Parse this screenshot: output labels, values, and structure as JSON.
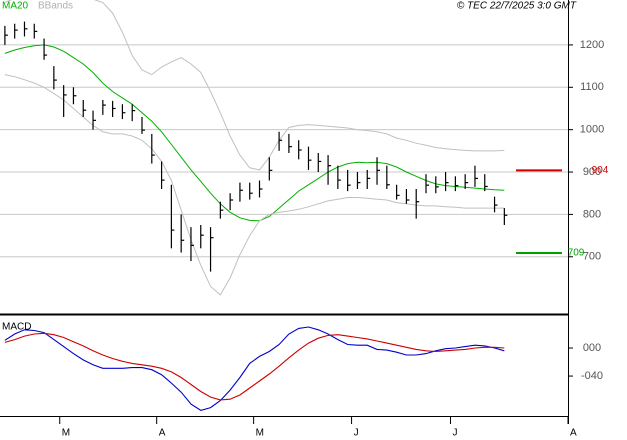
{
  "chart_data": [
    {
      "type": "ohlc",
      "title": "© TEC 22/7/2025 3:0 GMT",
      "bar_color": "#000000",
      "xlim": [
        -0.5,
        57.5
      ],
      "xticks": [
        {
          "value": 5.6,
          "label": "M"
        },
        {
          "value": 15.5,
          "label": "A"
        },
        {
          "value": 25.4,
          "label": "M"
        },
        {
          "value": 35.4,
          "label": "J"
        },
        {
          "value": 45.5,
          "label": "J"
        },
        {
          "value": 57.5,
          "label": "A"
        }
      ],
      "ylim": [
        565,
        1306
      ],
      "yticks": [
        700,
        800,
        900,
        1000,
        1100,
        1200
      ],
      "grid": true,
      "high": [
        1245,
        1250,
        1255,
        1250,
        1215,
        1150,
        1105,
        1100,
        1070,
        1045,
        1070,
        1068,
        1060,
        1060,
        1030,
        990,
        925,
        870,
        800,
        770,
        775,
        770,
        830,
        850,
        875,
        875,
        880,
        935,
        995,
        990,
        975,
        960,
        945,
        940,
        915,
        905,
        900,
        905,
        935,
        915,
        870,
        860,
        860,
        895,
        890,
        900,
        890,
        895,
        915,
        895,
        842,
        815
      ],
      "low": [
        1200,
        1215,
        1220,
        1215,
        1165,
        1095,
        1030,
        1060,
        1030,
        1000,
        1035,
        1030,
        1025,
        1020,
        990,
        920,
        860,
        720,
        710,
        690,
        720,
        665,
        790,
        810,
        830,
        835,
        840,
        880,
        950,
        945,
        930,
        905,
        900,
        870,
        860,
        855,
        860,
        860,
        870,
        860,
        835,
        825,
        790,
        850,
        850,
        855,
        855,
        860,
        865,
        855,
        805,
        775
      ],
      "close": [
        1223,
        1235,
        1238,
        1232,
        1176,
        1117,
        1082,
        1080,
        1046,
        1022,
        1058,
        1050,
        1040,
        1045,
        999,
        940,
        881,
        763,
        739,
        727,
        751,
        745,
        810,
        834,
        857,
        850,
        860,
        904,
        975,
        960,
        952,
        928,
        925,
        915,
        881,
        869,
        875,
        885,
        904,
        870,
        845,
        834,
        830,
        869,
        865,
        875,
        868,
        875,
        885,
        866,
        822,
        798
      ],
      "series": [
        {
          "name": "MA20",
          "color": "#00b000",
          "values": [
            1180,
            1188,
            1194,
            1198,
            1200,
            1195,
            1185,
            1170,
            1155,
            1135,
            1110,
            1090,
            1075,
            1060,
            1040,
            1020,
            995,
            965,
            935,
            905,
            878,
            850,
            825,
            805,
            792,
            786,
            785,
            795,
            815,
            835,
            855,
            870,
            885,
            900,
            912,
            920,
            923,
            922,
            923,
            920,
            912,
            900,
            890,
            880,
            872,
            868,
            866,
            864,
            862,
            860,
            858,
            857
          ]
        },
        {
          "name": "BBands",
          "color": "#c0c0c0",
          "upper": [
            1300,
            1310,
            1320,
            1330,
            1335,
            1330,
            1325,
            1320,
            1315,
            1308,
            1300,
            1275,
            1230,
            1175,
            1141,
            1130,
            1148,
            1160,
            1170,
            1155,
            1135,
            1090,
            1040,
            985,
            940,
            910,
            905,
            935,
            975,
            1005,
            1010,
            1012,
            1010,
            1008,
            1006,
            1004,
            1000,
            998,
            995,
            990,
            980,
            975,
            968,
            963,
            958,
            955,
            953,
            951,
            950,
            950,
            950,
            951
          ],
          "lower": [
            1130,
            1125,
            1118,
            1110,
            1100,
            1085,
            1070,
            1050,
            1030,
            1010,
            995,
            990,
            990,
            985,
            975,
            955,
            925,
            880,
            810,
            740,
            680,
            630,
            610,
            650,
            705,
            750,
            785,
            800,
            805,
            808,
            812,
            818,
            825,
            832,
            836,
            840,
            840,
            838,
            836,
            834,
            828,
            825,
            822,
            820,
            820,
            818,
            817,
            815,
            815,
            815,
            815,
            815
          ]
        }
      ],
      "levels": [
        {
          "value": 904,
          "color": "#cc0000"
        },
        {
          "value": 709,
          "color": "#00a000"
        }
      ]
    },
    {
      "type": "line",
      "title": "MACD",
      "xlim": [
        -0.5,
        57.5
      ],
      "ylim": [
        -97,
        45.7
      ],
      "yticks": [
        {
          "value": 0,
          "label": "000"
        },
        {
          "value": -40,
          "label": "-040"
        }
      ],
      "series": [
        {
          "color": "#0000cc",
          "values": [
            11,
            20,
            26,
            25,
            22,
            12,
            2,
            -8,
            -17,
            -24,
            -29,
            -29,
            -29,
            -28,
            -28,
            -31,
            -38,
            -50,
            -63,
            -80,
            -89,
            -85,
            -75,
            -60,
            -42,
            -22,
            -12,
            -5,
            5,
            20,
            28,
            30,
            26,
            20,
            12,
            5,
            4,
            4,
            -2,
            -3,
            -6,
            -10,
            -10,
            -8,
            -4,
            -1,
            0,
            2,
            4,
            3,
            0,
            -4
          ]
        },
        {
          "color": "#cc0000",
          "values": [
            8,
            12,
            17,
            20,
            21,
            19,
            15,
            9,
            3,
            -4,
            -10,
            -15,
            -19,
            -22,
            -24,
            -26,
            -29,
            -34,
            -42,
            -52,
            -62,
            -70,
            -74,
            -73,
            -67,
            -57,
            -47,
            -37,
            -26,
            -14,
            -3,
            7,
            14,
            18,
            19,
            17,
            15,
            13,
            10,
            7,
            4,
            1,
            -2,
            -4,
            -5,
            -4,
            -3,
            -2,
            0,
            1,
            1,
            0
          ]
        }
      ]
    }
  ]
}
